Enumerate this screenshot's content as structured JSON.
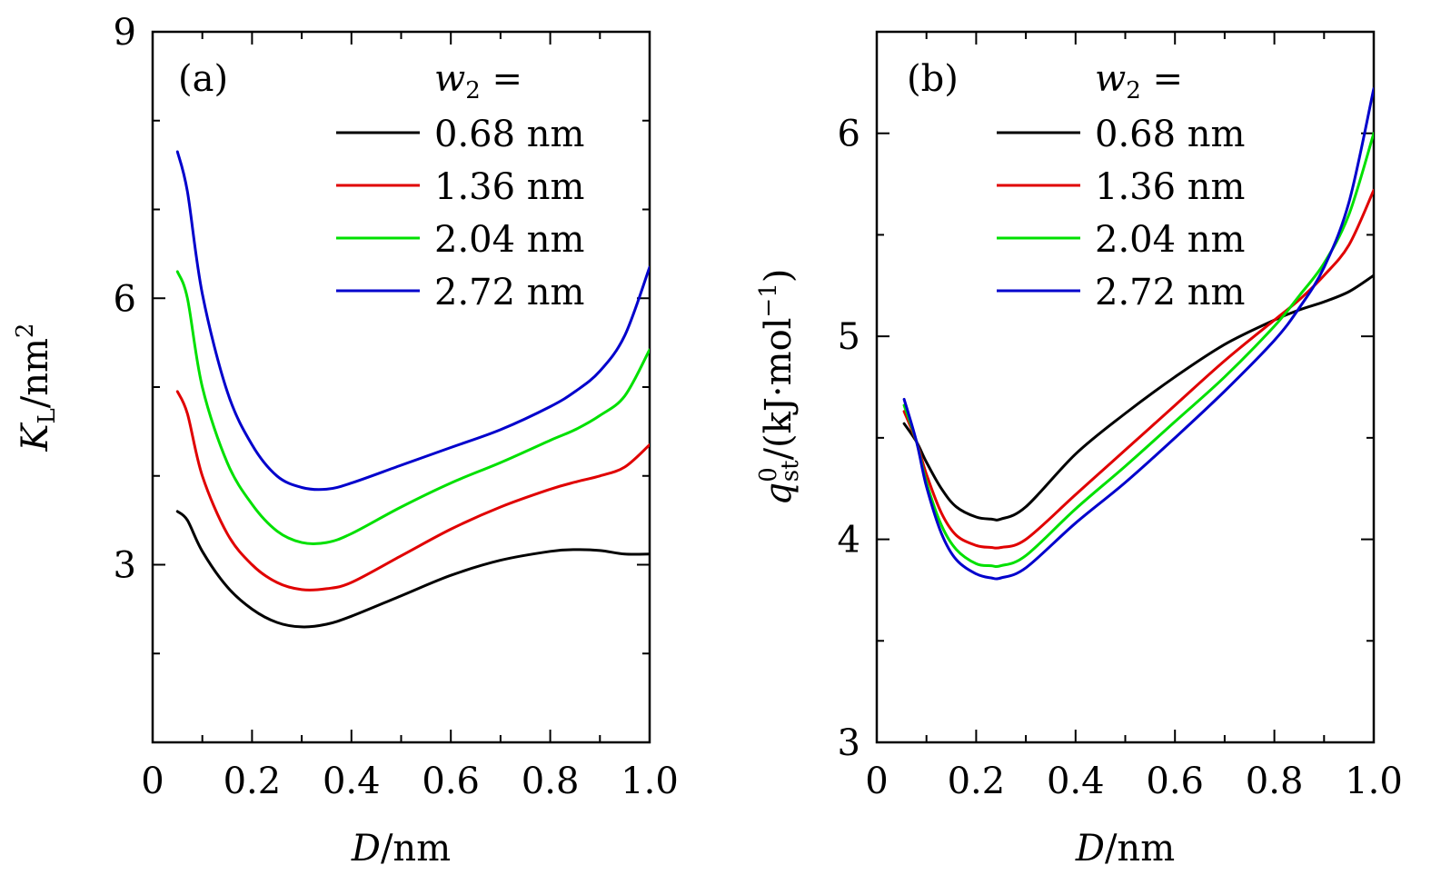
{
  "chart_data": [
    {
      "type": "line",
      "panel": "(a)",
      "xlabel": "D/nm",
      "ylabel": "K_L/nm^2",
      "ylabel_parts": {
        "main": "K",
        "sub": "L",
        "unit": "/nm",
        "sup": "2"
      },
      "xlabel_parts": {
        "var": "D",
        "unit": "/nm"
      },
      "xlim": [
        0,
        1.0
      ],
      "ylim": [
        1,
        9
      ],
      "xticks": [
        0,
        0.2,
        0.4,
        0.6,
        0.8,
        1.0
      ],
      "xtick_labels": [
        "0",
        "0.2",
        "0.4",
        "0.6",
        "0.8",
        "1.0"
      ],
      "yticks": [
        3,
        6,
        9
      ],
      "ytick_labels": [
        "3",
        "6",
        "9"
      ],
      "yminor": [
        2,
        4,
        5,
        7,
        8
      ],
      "legend_title": "w_2 =",
      "legend_title_parts": {
        "var": "w",
        "sub": "2",
        "rest": " ="
      },
      "legend_position": "top-right",
      "x": [
        0.05,
        0.07,
        0.1,
        0.15,
        0.2,
        0.25,
        0.3,
        0.35,
        0.4,
        0.5,
        0.6,
        0.7,
        0.8,
        0.85,
        0.9,
        0.95,
        1.0
      ],
      "series": [
        {
          "name": "0.68 nm",
          "color": "#000000",
          "values": [
            3.6,
            3.5,
            3.15,
            2.75,
            2.5,
            2.35,
            2.3,
            2.33,
            2.42,
            2.65,
            2.88,
            3.05,
            3.15,
            3.17,
            3.16,
            3.12,
            3.12
          ]
        },
        {
          "name": "1.36 nm",
          "color": "#e00000",
          "values": [
            4.95,
            4.7,
            4.0,
            3.35,
            3.0,
            2.8,
            2.72,
            2.73,
            2.8,
            3.1,
            3.4,
            3.65,
            3.85,
            3.93,
            4.0,
            4.1,
            4.35
          ]
        },
        {
          "name": "2.04 nm",
          "color": "#00e000",
          "values": [
            6.3,
            6.0,
            5.0,
            4.15,
            3.68,
            3.38,
            3.25,
            3.25,
            3.35,
            3.65,
            3.92,
            4.15,
            4.4,
            4.52,
            4.68,
            4.9,
            5.42
          ]
        },
        {
          "name": "2.72 nm",
          "color": "#0000cc",
          "values": [
            7.65,
            7.2,
            6.05,
            4.95,
            4.35,
            4.0,
            3.87,
            3.85,
            3.92,
            4.12,
            4.32,
            4.52,
            4.78,
            4.95,
            5.18,
            5.58,
            6.35
          ]
        }
      ]
    },
    {
      "type": "line",
      "panel": "(b)",
      "xlabel": "D/nm",
      "ylabel": "q^0_st/(kJ·mol^-1)",
      "ylabel_parts": {
        "main": "q",
        "sup": "0",
        "sub": "st",
        "unit": "/(kJ·mol",
        "unitsup": "−1",
        "close": ")"
      },
      "xlabel_parts": {
        "var": "D",
        "unit": "/nm"
      },
      "xlim": [
        0,
        1.0
      ],
      "ylim": [
        3,
        6.5
      ],
      "xticks": [
        0,
        0.2,
        0.4,
        0.6,
        0.8,
        1.0
      ],
      "xtick_labels": [
        "0",
        "0.2",
        "0.4",
        "0.6",
        "0.8",
        "1.0"
      ],
      "yticks": [
        3,
        4,
        5,
        6
      ],
      "ytick_labels": [
        "3",
        "4",
        "5",
        "6"
      ],
      "yminor": [
        3.5,
        4.5,
        5.5
      ],
      "legend_title": "w_2 =",
      "legend_title_parts": {
        "var": "w",
        "sub": "2",
        "rest": " ="
      },
      "legend_position": "top-right",
      "x": [
        0.055,
        0.08,
        0.1,
        0.13,
        0.16,
        0.2,
        0.23,
        0.25,
        0.3,
        0.4,
        0.5,
        0.6,
        0.7,
        0.8,
        0.85,
        0.9,
        0.95,
        1.0
      ],
      "series": [
        {
          "name": "0.68 nm",
          "color": "#000000",
          "values": [
            4.57,
            4.48,
            4.38,
            4.25,
            4.16,
            4.11,
            4.1,
            4.1,
            4.16,
            4.42,
            4.62,
            4.8,
            4.96,
            5.08,
            5.13,
            5.17,
            5.22,
            5.3
          ]
        },
        {
          "name": "1.36 nm",
          "color": "#e00000",
          "values": [
            4.63,
            4.48,
            4.32,
            4.13,
            4.02,
            3.97,
            3.96,
            3.96,
            4.0,
            4.22,
            4.44,
            4.66,
            4.88,
            5.08,
            5.18,
            5.3,
            5.45,
            5.72
          ]
        },
        {
          "name": "2.04 nm",
          "color": "#00e000",
          "values": [
            4.66,
            4.48,
            4.28,
            4.07,
            3.95,
            3.88,
            3.87,
            3.87,
            3.92,
            4.15,
            4.36,
            4.58,
            4.8,
            5.05,
            5.2,
            5.36,
            5.6,
            6.0
          ]
        },
        {
          "name": "2.72 nm",
          "color": "#0000cc",
          "values": [
            4.69,
            4.48,
            4.26,
            4.03,
            3.9,
            3.83,
            3.81,
            3.81,
            3.86,
            4.08,
            4.28,
            4.5,
            4.73,
            4.98,
            5.14,
            5.34,
            5.66,
            6.22
          ]
        }
      ]
    }
  ]
}
